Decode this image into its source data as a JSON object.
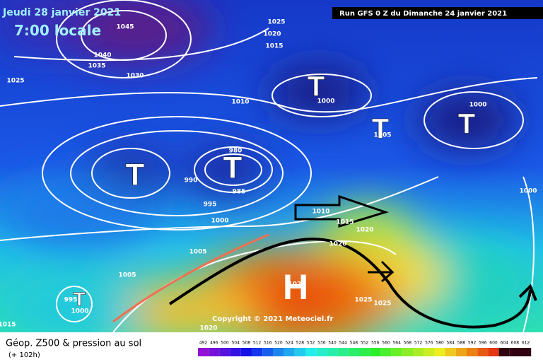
{
  "header": {
    "date": "Jeudi 28 janvier 2021",
    "time": "7:00 locale",
    "run": "Run GFS 0 Z du Dimanche 24 janvier 2021"
  },
  "isobar_labels": [
    "1045",
    "1040",
    "1035",
    "1030",
    "1025",
    "1020",
    "1015",
    "1025",
    "1010",
    "1000",
    "1005",
    "1000",
    "980",
    "990",
    "985",
    "995",
    "1000",
    "1010",
    "1015",
    "1020",
    "1020",
    "1005",
    "1005",
    "1025",
    "1025",
    "1025",
    "1020",
    "1015",
    "1000",
    "995",
    "1000"
  ],
  "centers": [
    "T",
    "T",
    "T",
    "T",
    "T",
    "T",
    "H"
  ],
  "copyright": "Copyright © 2021 Meteociel.fr",
  "legend": {
    "title": "Géop. Z500 & pression au sol",
    "subtitle": "(+ 102h)",
    "scale": [
      492,
      496,
      500,
      504,
      508,
      512,
      516,
      520,
      524,
      528,
      532,
      536,
      540,
      544,
      548,
      552,
      556,
      560,
      564,
      568,
      572,
      576,
      580,
      584,
      588,
      592,
      596,
      600,
      604,
      608,
      612
    ]
  }
}
